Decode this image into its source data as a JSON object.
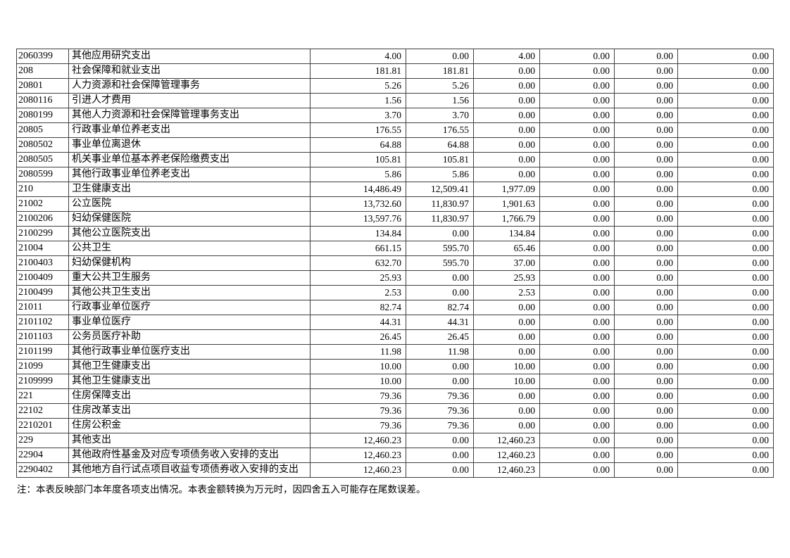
{
  "table": {
    "rows": [
      {
        "code": "2060399",
        "name": "其他应用研究支出",
        "values": [
          "4.00",
          "0.00",
          "4.00",
          "0.00",
          "0.00",
          "0.00"
        ]
      },
      {
        "code": "208",
        "name": "社会保障和就业支出",
        "values": [
          "181.81",
          "181.81",
          "0.00",
          "0.00",
          "0.00",
          "0.00"
        ]
      },
      {
        "code": "20801",
        "name": "人力资源和社会保障管理事务",
        "values": [
          "5.26",
          "5.26",
          "0.00",
          "0.00",
          "0.00",
          "0.00"
        ]
      },
      {
        "code": "2080116",
        "name": "引进人才费用",
        "values": [
          "1.56",
          "1.56",
          "0.00",
          "0.00",
          "0.00",
          "0.00"
        ]
      },
      {
        "code": "2080199",
        "name": "其他人力资源和社会保障管理事务支出",
        "values": [
          "3.70",
          "3.70",
          "0.00",
          "0.00",
          "0.00",
          "0.00"
        ]
      },
      {
        "code": "20805",
        "name": "行政事业单位养老支出",
        "values": [
          "176.55",
          "176.55",
          "0.00",
          "0.00",
          "0.00",
          "0.00"
        ]
      },
      {
        "code": "2080502",
        "name": "事业单位离退休",
        "values": [
          "64.88",
          "64.88",
          "0.00",
          "0.00",
          "0.00",
          "0.00"
        ]
      },
      {
        "code": "2080505",
        "name": "机关事业单位基本养老保险缴费支出",
        "values": [
          "105.81",
          "105.81",
          "0.00",
          "0.00",
          "0.00",
          "0.00"
        ]
      },
      {
        "code": "2080599",
        "name": "其他行政事业单位养老支出",
        "values": [
          "5.86",
          "5.86",
          "0.00",
          "0.00",
          "0.00",
          "0.00"
        ]
      },
      {
        "code": "210",
        "name": "卫生健康支出",
        "values": [
          "14,486.49",
          "12,509.41",
          "1,977.09",
          "0.00",
          "0.00",
          "0.00"
        ]
      },
      {
        "code": "21002",
        "name": "公立医院",
        "values": [
          "13,732.60",
          "11,830.97",
          "1,901.63",
          "0.00",
          "0.00",
          "0.00"
        ]
      },
      {
        "code": "2100206",
        "name": "妇幼保健医院",
        "values": [
          "13,597.76",
          "11,830.97",
          "1,766.79",
          "0.00",
          "0.00",
          "0.00"
        ]
      },
      {
        "code": "2100299",
        "name": "其他公立医院支出",
        "values": [
          "134.84",
          "0.00",
          "134.84",
          "0.00",
          "0.00",
          "0.00"
        ]
      },
      {
        "code": "21004",
        "name": "公共卫生",
        "values": [
          "661.15",
          "595.70",
          "65.46",
          "0.00",
          "0.00",
          "0.00"
        ]
      },
      {
        "code": "2100403",
        "name": "妇幼保健机构",
        "values": [
          "632.70",
          "595.70",
          "37.00",
          "0.00",
          "0.00",
          "0.00"
        ]
      },
      {
        "code": "2100409",
        "name": "重大公共卫生服务",
        "values": [
          "25.93",
          "0.00",
          "25.93",
          "0.00",
          "0.00",
          "0.00"
        ]
      },
      {
        "code": "2100499",
        "name": "其他公共卫生支出",
        "values": [
          "2.53",
          "0.00",
          "2.53",
          "0.00",
          "0.00",
          "0.00"
        ]
      },
      {
        "code": "21011",
        "name": "行政事业单位医疗",
        "values": [
          "82.74",
          "82.74",
          "0.00",
          "0.00",
          "0.00",
          "0.00"
        ]
      },
      {
        "code": "2101102",
        "name": "事业单位医疗",
        "values": [
          "44.31",
          "44.31",
          "0.00",
          "0.00",
          "0.00",
          "0.00"
        ]
      },
      {
        "code": "2101103",
        "name": "公务员医疗补助",
        "values": [
          "26.45",
          "26.45",
          "0.00",
          "0.00",
          "0.00",
          "0.00"
        ]
      },
      {
        "code": "2101199",
        "name": "其他行政事业单位医疗支出",
        "values": [
          "11.98",
          "11.98",
          "0.00",
          "0.00",
          "0.00",
          "0.00"
        ]
      },
      {
        "code": "21099",
        "name": "其他卫生健康支出",
        "values": [
          "10.00",
          "0.00",
          "10.00",
          "0.00",
          "0.00",
          "0.00"
        ]
      },
      {
        "code": "2109999",
        "name": "其他卫生健康支出",
        "values": [
          "10.00",
          "0.00",
          "10.00",
          "0.00",
          "0.00",
          "0.00"
        ]
      },
      {
        "code": "221",
        "name": "住房保障支出",
        "values": [
          "79.36",
          "79.36",
          "0.00",
          "0.00",
          "0.00",
          "0.00"
        ]
      },
      {
        "code": "22102",
        "name": "住房改革支出",
        "values": [
          "79.36",
          "79.36",
          "0.00",
          "0.00",
          "0.00",
          "0.00"
        ]
      },
      {
        "code": "2210201",
        "name": "住房公积金",
        "values": [
          "79.36",
          "79.36",
          "0.00",
          "0.00",
          "0.00",
          "0.00"
        ]
      },
      {
        "code": "229",
        "name": "其他支出",
        "values": [
          "12,460.23",
          "0.00",
          "12,460.23",
          "0.00",
          "0.00",
          "0.00"
        ]
      },
      {
        "code": "22904",
        "name": "其他政府性基金及对应专项债务收入安排的支出",
        "values": [
          "12,460.23",
          "0.00",
          "12,460.23",
          "0.00",
          "0.00",
          "0.00"
        ]
      },
      {
        "code": "2290402",
        "name": "其他地方自行试点项目收益专项债券收入安排的支出",
        "values": [
          "12,460.23",
          "0.00",
          "12,460.23",
          "0.00",
          "0.00",
          "0.00"
        ]
      }
    ]
  },
  "footnote": "注：本表反映部门本年度各项支出情况。本表金额转换为万元时，因四舍五入可能存在尾数误差。"
}
